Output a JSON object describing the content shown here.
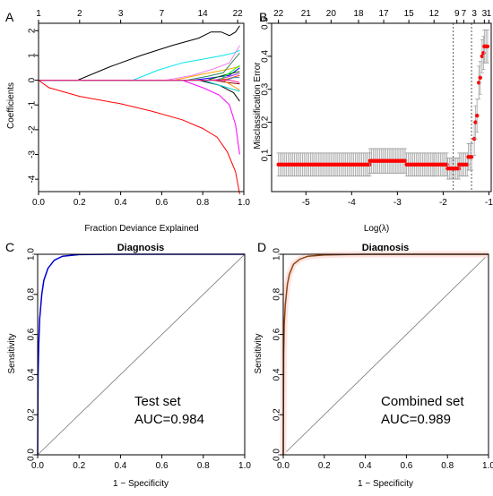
{
  "panels": {
    "A": {
      "label": "A",
      "chart_data": {
        "type": "line",
        "xlabel": "Fraction Deviance Explained",
        "ylabel": "Coefficients",
        "xlim": [
          0.0,
          1.0
        ],
        "ylim": [
          -4.5,
          2.3
        ],
        "x_ticks": [
          "0.0",
          "0.2",
          "0.4",
          "0.6",
          "0.8",
          "1.0"
        ],
        "y_ticks": [
          "-4",
          "-3",
          "-2",
          "-1",
          "0",
          "1",
          "2"
        ],
        "top_ticks": [
          {
            "at": 0.0,
            "label": "1"
          },
          {
            "at": 0.2,
            "label": "2"
          },
          {
            "at": 0.4,
            "label": "3"
          },
          {
            "at": 0.6,
            "label": "7"
          },
          {
            "at": 0.8,
            "label": "14"
          },
          {
            "at": 0.97,
            "label": "22"
          }
        ],
        "series": [
          {
            "color": "#ff0000",
            "points": [
              [
                0,
                0
              ],
              [
                0.05,
                -0.3
              ],
              [
                0.2,
                -0.65
              ],
              [
                0.4,
                -0.95
              ],
              [
                0.55,
                -1.25
              ],
              [
                0.7,
                -1.6
              ],
              [
                0.8,
                -1.95
              ],
              [
                0.87,
                -2.3
              ],
              [
                0.92,
                -2.9
              ],
              [
                0.96,
                -3.7
              ],
              [
                0.98,
                -4.6
              ]
            ]
          },
          {
            "color": "#000000",
            "points": [
              [
                0,
                0
              ],
              [
                0.19,
                0
              ],
              [
                0.35,
                0.55
              ],
              [
                0.5,
                1.0
              ],
              [
                0.65,
                1.4
              ],
              [
                0.78,
                1.7
              ],
              [
                0.84,
                1.95
              ],
              [
                0.89,
                1.95
              ],
              [
                0.93,
                1.8
              ],
              [
                0.96,
                1.95
              ],
              [
                0.98,
                2.2
              ]
            ]
          },
          {
            "color": "#00e5ee",
            "points": [
              [
                0,
                0
              ],
              [
                0.46,
                0
              ],
              [
                0.58,
                0.4
              ],
              [
                0.7,
                0.7
              ],
              [
                0.8,
                0.85
              ],
              [
                0.9,
                1.0
              ],
              [
                0.95,
                1.1
              ],
              [
                0.98,
                1.2
              ]
            ]
          },
          {
            "color": "#ff00ff",
            "points": [
              [
                0,
                0
              ],
              [
                0.7,
                0
              ],
              [
                0.8,
                -0.3
              ],
              [
                0.88,
                -0.6
              ],
              [
                0.93,
                -1.0
              ],
              [
                0.96,
                -1.8
              ],
              [
                0.98,
                -3.0
              ]
            ]
          },
          {
            "color": "#ee82ee",
            "points": [
              [
                0,
                0
              ],
              [
                0.62,
                0
              ],
              [
                0.75,
                0.2
              ],
              [
                0.85,
                0.45
              ],
              [
                0.93,
                0.7
              ],
              [
                0.98,
                1.4
              ]
            ]
          },
          {
            "color": "#ffa500",
            "points": [
              [
                0,
                0
              ],
              [
                0.66,
                0
              ],
              [
                0.8,
                0.25
              ],
              [
                0.9,
                0.4
              ],
              [
                0.98,
                0.55
              ]
            ]
          },
          {
            "color": "#2e8b57",
            "points": [
              [
                0,
                0
              ],
              [
                0.72,
                0
              ],
              [
                0.82,
                0.15
              ],
              [
                0.9,
                0.3
              ],
              [
                0.98,
                1.1
              ]
            ]
          },
          {
            "color": "#0000ff",
            "points": [
              [
                0,
                0
              ],
              [
                0.75,
                0
              ],
              [
                0.85,
                0.1
              ],
              [
                0.93,
                0.2
              ],
              [
                0.98,
                0.5
              ]
            ]
          },
          {
            "color": "#000000",
            "points": [
              [
                0,
                0
              ],
              [
                0.78,
                0
              ],
              [
                0.88,
                -0.2
              ],
              [
                0.95,
                -0.5
              ],
              [
                0.98,
                -0.85
              ]
            ]
          },
          {
            "color": "#00cdcd",
            "points": [
              [
                0,
                0
              ],
              [
                0.8,
                0
              ],
              [
                0.9,
                -0.25
              ],
              [
                0.98,
                -0.45
              ]
            ]
          },
          {
            "color": "#006400",
            "points": [
              [
                0,
                0
              ],
              [
                0.82,
                0
              ],
              [
                0.9,
                0.2
              ],
              [
                0.98,
                0.35
              ]
            ]
          },
          {
            "color": "#ff4500",
            "points": [
              [
                0,
                0
              ],
              [
                0.83,
                0
              ],
              [
                0.92,
                0.05
              ],
              [
                0.98,
                0.2
              ]
            ]
          },
          {
            "color": "#8b0000",
            "points": [
              [
                0,
                0
              ],
              [
                0.85,
                0
              ],
              [
                0.93,
                -0.1
              ],
              [
                0.98,
                -0.15
              ]
            ]
          },
          {
            "color": "#a020f0",
            "points": [
              [
                0,
                0
              ],
              [
                0.86,
                0
              ],
              [
                0.93,
                0.15
              ],
              [
                0.98,
                0.28
              ]
            ]
          },
          {
            "color": "#00ff00",
            "points": [
              [
                0,
                0
              ],
              [
                0.88,
                0
              ],
              [
                0.94,
                0.35
              ],
              [
                0.98,
                0.6
              ]
            ]
          },
          {
            "color": "#ff8c00",
            "points": [
              [
                0,
                0
              ],
              [
                0.9,
                0
              ],
              [
                0.95,
                -0.25
              ],
              [
                0.98,
                -0.4
              ]
            ]
          },
          {
            "color": "#4682b4",
            "points": [
              [
                0,
                0
              ],
              [
                0.91,
                0
              ],
              [
                0.95,
                0.1
              ],
              [
                0.98,
                0.12
              ]
            ]
          },
          {
            "color": "#ff1493",
            "points": [
              [
                0,
                0
              ],
              [
                0.93,
                0
              ],
              [
                0.96,
                -0.05
              ],
              [
                0.98,
                -0.1
              ]
            ]
          }
        ]
      }
    },
    "B": {
      "label": "B",
      "chart_data": {
        "type": "scatter",
        "xlabel": "Log(λ)",
        "ylabel": "Misclassification Error",
        "xlim": [
          -5.75,
          -0.95
        ],
        "ylim": [
          -0.01,
          0.5
        ],
        "x_ticks": [
          "-5",
          "-4",
          "-3",
          "-2",
          "-1"
        ],
        "y_ticks": [
          "0.1",
          "0.2",
          "0.3",
          "0.4",
          "0.5"
        ],
        "top_ticks": [
          {
            "at": -5.6,
            "label": "22"
          },
          {
            "at": -5.0,
            "label": "21"
          },
          {
            "at": -4.45,
            "label": "20"
          },
          {
            "at": -3.85,
            "label": "18"
          },
          {
            "at": -3.3,
            "label": "17"
          },
          {
            "at": -2.75,
            "label": "15"
          },
          {
            "at": -2.2,
            "label": "12"
          },
          {
            "at": -1.7,
            "label": "9"
          },
          {
            "at": -1.55,
            "label": "7"
          },
          {
            "at": -1.32,
            "label": "3"
          },
          {
            "at": -1.1,
            "label": "3"
          },
          {
            "at": -1.0,
            "label": "1"
          }
        ],
        "vlines": [
          -1.78,
          -1.38
        ],
        "points": [
          {
            "x_from": -5.6,
            "x_to": -3.6,
            "y": 0.072,
            "err": 0.035
          },
          {
            "x_from": -3.6,
            "x_to": -2.8,
            "y": 0.083,
            "err": 0.037
          },
          {
            "x_from": -2.8,
            "x_to": -2.2,
            "y": 0.072,
            "err": 0.035
          },
          {
            "x_from": -2.2,
            "x_to": -1.9,
            "y": 0.072,
            "err": 0.035
          },
          {
            "x_from": -1.9,
            "x_to": -1.65,
            "y": 0.06,
            "err": 0.032
          },
          {
            "x_from": -1.65,
            "x_to": -1.45,
            "y": 0.072,
            "err": 0.035
          },
          {
            "x_from": -1.45,
            "x_to": -1.35,
            "y": 0.095,
            "err": 0.04
          },
          {
            "x": -1.32,
            "y": 0.15,
            "err": 0.05
          },
          {
            "x": -1.29,
            "y": 0.2,
            "err": 0.05
          },
          {
            "x": -1.26,
            "y": 0.22,
            "err": 0.05
          },
          {
            "x": -1.22,
            "y": 0.32,
            "err": 0.05
          },
          {
            "x": -1.19,
            "y": 0.335,
            "err": 0.05
          },
          {
            "x": -1.15,
            "y": 0.4,
            "err": 0.05
          },
          {
            "x": -1.12,
            "y": 0.41,
            "err": 0.05
          },
          {
            "x_from": -1.1,
            "x_to": -1.02,
            "y": 0.43,
            "err": 0.05
          }
        ]
      }
    },
    "C": {
      "label": "C",
      "chart_data": {
        "type": "line",
        "title": "Diagnosis",
        "xlabel": "1 − Specificity",
        "ylabel": "Sensitivity",
        "xlim": [
          0,
          1
        ],
        "ylim": [
          0,
          1
        ],
        "x_ticks": [
          "0.0",
          "0.2",
          "0.4",
          "0.6",
          "0.8",
          "1.0"
        ],
        "y_ticks": [
          "0.0",
          "0.2",
          "0.4",
          "0.6",
          "0.8",
          "1.0"
        ],
        "line_color": "#0000cd",
        "curve": [
          [
            0,
            0
          ],
          [
            0.002,
            0.4
          ],
          [
            0.005,
            0.55
          ],
          [
            0.01,
            0.68
          ],
          [
            0.02,
            0.8
          ],
          [
            0.03,
            0.87
          ],
          [
            0.05,
            0.93
          ],
          [
            0.08,
            0.97
          ],
          [
            0.12,
            0.99
          ],
          [
            0.2,
            0.998
          ],
          [
            0.4,
            1.0
          ],
          [
            1.0,
            1.0
          ]
        ],
        "annotation_set": "Test set",
        "annotation_auc": "AUC=0.984"
      }
    },
    "D": {
      "label": "D",
      "chart_data": {
        "type": "line",
        "title": "Diagnosis",
        "xlabel": "1 − Specificity",
        "ylabel": "Sensitivity",
        "xlim": [
          0,
          1
        ],
        "ylim": [
          0,
          1
        ],
        "x_ticks": [
          "0.0",
          "0.2",
          "0.4",
          "0.6",
          "0.8",
          "1.0"
        ],
        "y_ticks": [
          "0.0",
          "0.2",
          "0.4",
          "0.6",
          "0.8",
          "1.0"
        ],
        "line_color": "#8b4513",
        "band_color": "#ffe4e1",
        "curve": [
          [
            0,
            0
          ],
          [
            0.002,
            0.5
          ],
          [
            0.005,
            0.65
          ],
          [
            0.01,
            0.75
          ],
          [
            0.02,
            0.85
          ],
          [
            0.03,
            0.9
          ],
          [
            0.05,
            0.95
          ],
          [
            0.08,
            0.975
          ],
          [
            0.12,
            0.99
          ],
          [
            0.2,
            0.997
          ],
          [
            0.4,
            1.0
          ],
          [
            1.0,
            1.0
          ]
        ],
        "annotation_set": "Combined set",
        "annotation_auc": "AUC=0.989"
      }
    }
  }
}
